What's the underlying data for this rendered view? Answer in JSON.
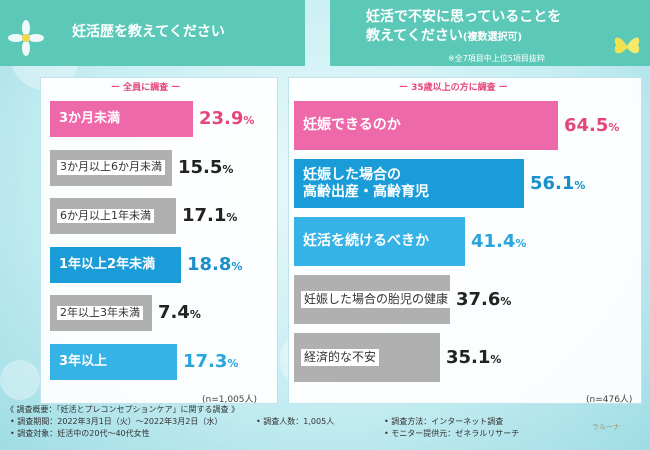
{
  "chart_data": [
    {
      "type": "bar",
      "title": "妊活歴を教えてください",
      "subtitle": "ー 全員に調査 ー",
      "sample_size": "(n=1,005人)",
      "unit": "%",
      "categories": [
        "3か月未満",
        "3か月以上6か月未満",
        "6か月以上1年未満",
        "1年以上2年未満",
        "2年以上3年未満",
        "3年以上"
      ],
      "values": [
        23.9,
        15.5,
        17.1,
        18.8,
        7.4,
        17.3
      ],
      "styles": [
        "pink",
        "gray",
        "gray",
        "blue1",
        "gray",
        "blue2"
      ]
    },
    {
      "type": "bar",
      "title": "妊活で不安に思っていることを教えてください",
      "title_lines": [
        "妊活で不安に思っていることを",
        "教えてください"
      ],
      "title_suffix": "(複数選択可)",
      "note": "※全7項目中上位5項目抜粋",
      "subtitle": "ー 35歳以上の方に調査 ー",
      "sample_size": "(n=476人)",
      "unit": "%",
      "categories": [
        "妊娠できるのか",
        "妊娠した場合の高齢出産・高齢育児",
        "妊活を続けるべきか",
        "妊娠した場合の胎児の健康",
        "経済的な不安"
      ],
      "category_lines": [
        [
          "妊娠できるのか"
        ],
        [
          "妊娠した場合の",
          "高齢出産・高齢育児"
        ],
        [
          "妊活を続けるべきか"
        ],
        [
          "妊娠した場合の胎児の健康"
        ],
        [
          "経済的な不安"
        ]
      ],
      "values": [
        64.5,
        56.1,
        41.4,
        37.6,
        35.1
      ],
      "styles": [
        "pink",
        "blue1",
        "blue2",
        "gray",
        "gray"
      ]
    }
  ],
  "footer": {
    "overview": "《 調査概要：「妊活とプレコンセプションケア」に関する調査 》",
    "period": "• 調査期間：2022年3月1日（火）〜2022年3月2日（水）",
    "respondents": "• 調査人数：1,005人",
    "method": "• 調査方法：インターネット調査",
    "target": "• 調査対象：妊活中の20代〜40代女性",
    "provider": "• モニター提供元：ゼネラルリサーチ"
  },
  "logo_text": "ラルーナ",
  "colors": {
    "pink": "#ee69a9",
    "blue1": "#1a9cd8",
    "blue2": "#35b3e6",
    "gray": "#b0b0b0",
    "header": "#5cc9b8"
  }
}
